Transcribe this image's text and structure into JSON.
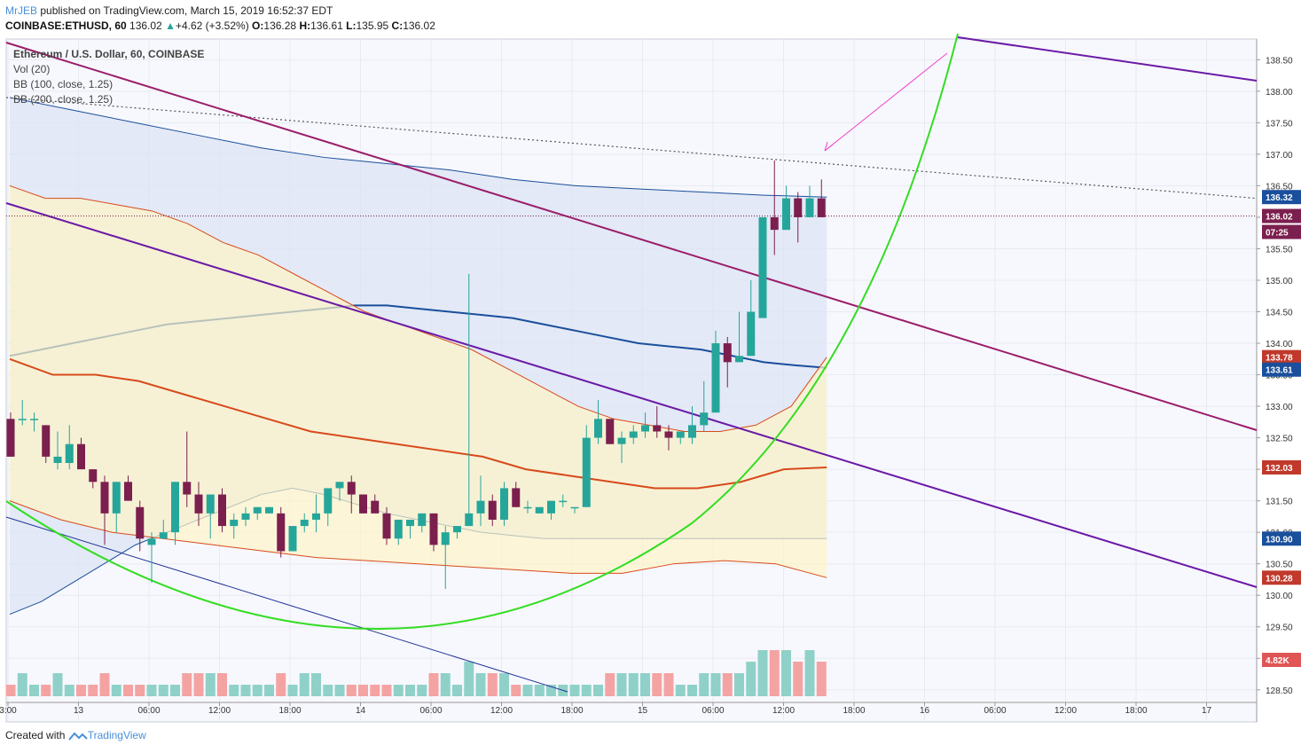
{
  "header": {
    "author": "MrJEB",
    "published_text": "published on TradingView.com, March 15, 2019 16:52:37 EDT",
    "symbol": "COINBASE:ETHUSD, 60",
    "last": "136.02",
    "change_arrow": "▲",
    "change": "+4.62 (+3.52%)",
    "o_label": "O:",
    "o_value": "136.28",
    "h_label": "H:",
    "h_value": "136.61",
    "l_label": "L:",
    "l_value": "135.95",
    "c_label": "C:",
    "c_value": "136.02"
  },
  "legend": {
    "title": "Ethereum / U.S. Dollar, 60, COINBASE",
    "vol": "Vol (20)",
    "bb100": "BB (100, close, 1.25)",
    "bb200": "BB (200, close, 1.25)"
  },
  "footer": {
    "created_with": "Created with",
    "brand": "TradingView",
    "logo_icon": "tradingview-logo-icon"
  },
  "colors": {
    "up": "#26a69a",
    "down": "#7b1f4e",
    "vol_up": "#8fd1c9",
    "vol_down": "#f4a3a3",
    "bb100_fill": "#fdf3c8",
    "bb200_fill": "#dce4f3",
    "bb_red": "#d84a1b",
    "bb_blue": "#1a4f9c",
    "curve": "#33dd22",
    "magenta_line": "#9b1d6b",
    "purple_line": "#6b1aa6",
    "navy_line": "#223399",
    "pink_arrow": "#ee44cc",
    "dotted": "#555555"
  },
  "chart_data": {
    "type": "candlestick",
    "symbol": "COINBASE:ETHUSD",
    "interval": "60",
    "y_axis": {
      "range": [
        128.3,
        138.8
      ],
      "ticks": [
        "138.50",
        "138.00",
        "137.50",
        "137.00",
        "136.50",
        "136.00",
        "135.50",
        "135.00",
        "134.50",
        "134.00",
        "133.50",
        "133.00",
        "132.50",
        "132.00",
        "131.50",
        "131.00",
        "130.50",
        "130.00",
        "129.50",
        "129.00",
        "128.50"
      ]
    },
    "x_axis": {
      "labels": [
        "3:00",
        "13",
        "06:00",
        "12:00",
        "18:00",
        "14",
        "06:00",
        "12:00",
        "18:00",
        "15",
        "06:00",
        "12:00",
        "18:00",
        "16",
        "06:00",
        "12:00",
        "18:00",
        "17"
      ],
      "label_index": [
        0,
        3,
        6,
        9,
        12,
        15,
        18,
        21,
        24,
        27,
        30,
        33,
        36,
        39,
        42,
        45,
        48,
        51
      ]
    },
    "price_tags": [
      {
        "value": "136.32",
        "color": "#1a4f9c"
      },
      {
        "value": "136.02",
        "color": "#7b1f4e"
      },
      {
        "value": "07:25",
        "color": "#7b1f4e"
      },
      {
        "value": "133.78",
        "color": "#c0392b"
      },
      {
        "value": "133.61",
        "color": "#1a4f9c"
      },
      {
        "value": "132.03",
        "color": "#c0392b"
      },
      {
        "value": "130.90",
        "color": "#1a4f9c"
      },
      {
        "value": "130.28",
        "color": "#c0392b"
      },
      {
        "value": "4.82K",
        "color": "#e05555"
      }
    ],
    "candles": [
      [
        132.8,
        132.9,
        132.2,
        132.2
      ],
      [
        132.8,
        133.1,
        132.7,
        132.8
      ],
      [
        132.8,
        132.9,
        132.6,
        132.8
      ],
      [
        132.7,
        132.7,
        132.1,
        132.2
      ],
      [
        132.1,
        132.6,
        132.0,
        132.2
      ],
      [
        132.1,
        132.7,
        132.0,
        132.4
      ],
      [
        132.4,
        132.5,
        132.0,
        132.0
      ],
      [
        132.0,
        132.0,
        131.7,
        131.8
      ],
      [
        131.8,
        131.9,
        130.8,
        131.3
      ],
      [
        131.3,
        131.8,
        131.0,
        131.8
      ],
      [
        131.8,
        131.9,
        131.5,
        131.5
      ],
      [
        131.4,
        131.5,
        130.7,
        130.9
      ],
      [
        130.8,
        131.0,
        130.2,
        130.9
      ],
      [
        130.9,
        131.2,
        130.9,
        131.0
      ],
      [
        131.0,
        131.8,
        130.8,
        131.8
      ],
      [
        131.8,
        132.6,
        131.4,
        131.6
      ],
      [
        131.6,
        131.8,
        131.1,
        131.3
      ],
      [
        131.3,
        131.6,
        130.9,
        131.6
      ],
      [
        131.6,
        131.7,
        131.0,
        131.1
      ],
      [
        131.1,
        131.3,
        130.9,
        131.2
      ],
      [
        131.2,
        131.4,
        131.1,
        131.3
      ],
      [
        131.3,
        131.4,
        131.2,
        131.4
      ],
      [
        131.3,
        131.4,
        131.3,
        131.4
      ],
      [
        131.3,
        131.4,
        130.6,
        130.7
      ],
      [
        130.7,
        131.0,
        130.7,
        131.1
      ],
      [
        131.1,
        131.3,
        131.0,
        131.2
      ],
      [
        131.2,
        131.6,
        131.0,
        131.3
      ],
      [
        131.3,
        131.6,
        131.1,
        131.7
      ],
      [
        131.7,
        131.8,
        131.5,
        131.8
      ],
      [
        131.8,
        131.9,
        131.3,
        131.6
      ],
      [
        131.6,
        131.6,
        131.3,
        131.3
      ],
      [
        131.5,
        131.6,
        131.3,
        131.3
      ],
      [
        131.3,
        131.4,
        130.8,
        130.9
      ],
      [
        130.9,
        131.2,
        130.8,
        131.2
      ],
      [
        131.1,
        131.2,
        130.9,
        131.2
      ],
      [
        131.1,
        131.3,
        131.0,
        131.3
      ],
      [
        131.3,
        131.3,
        130.7,
        130.8
      ],
      [
        130.8,
        131.1,
        130.1,
        131.0
      ],
      [
        131.0,
        131.1,
        130.9,
        131.1
      ],
      [
        131.1,
        135.1,
        131.1,
        131.3
      ],
      [
        131.3,
        131.9,
        131.1,
        131.5
      ],
      [
        131.5,
        131.6,
        131.1,
        131.2
      ],
      [
        131.2,
        131.8,
        131.1,
        131.7
      ],
      [
        131.7,
        131.8,
        131.4,
        131.4
      ],
      [
        131.4,
        131.5,
        131.3,
        131.4
      ],
      [
        131.3,
        131.4,
        131.3,
        131.4
      ],
      [
        131.3,
        131.5,
        131.2,
        131.5
      ],
      [
        131.5,
        131.6,
        131.4,
        131.5
      ],
      [
        131.4,
        131.4,
        131.3,
        131.4
      ],
      [
        131.4,
        132.7,
        131.4,
        132.5
      ],
      [
        132.5,
        133.1,
        132.4,
        132.8
      ],
      [
        132.8,
        132.8,
        132.4,
        132.4
      ],
      [
        132.4,
        132.6,
        132.1,
        132.5
      ],
      [
        132.5,
        132.7,
        132.4,
        132.6
      ],
      [
        132.6,
        132.9,
        132.5,
        132.7
      ],
      [
        132.7,
        133.0,
        132.5,
        132.6
      ],
      [
        132.6,
        132.7,
        132.3,
        132.5
      ],
      [
        132.5,
        132.6,
        132.4,
        132.6
      ],
      [
        132.5,
        133.0,
        132.4,
        132.7
      ],
      [
        132.7,
        133.4,
        132.6,
        132.9
      ],
      [
        132.9,
        134.2,
        132.9,
        134.0
      ],
      [
        134.0,
        134.1,
        133.3,
        133.7
      ],
      [
        133.7,
        134.5,
        133.7,
        133.8
      ],
      [
        133.8,
        135.0,
        133.8,
        134.5
      ],
      [
        134.4,
        136.0,
        134.4,
        136.0
      ],
      [
        136.0,
        136.9,
        135.4,
        135.8
      ],
      [
        135.8,
        136.5,
        135.8,
        136.3
      ],
      [
        136.3,
        136.4,
        135.6,
        136.0
      ],
      [
        136.0,
        136.5,
        136.0,
        136.3
      ],
      [
        136.3,
        136.6,
        136.0,
        136.0
      ]
    ],
    "volume_max": 10,
    "volume": [
      1,
      2,
      1,
      1,
      2,
      1,
      1,
      1,
      2,
      1,
      1,
      1,
      1,
      1,
      1,
      2,
      2,
      2,
      2,
      1,
      1,
      1,
      1,
      2,
      1,
      2,
      2,
      1,
      1,
      1,
      1,
      1,
      1,
      1,
      1,
      1,
      2,
      2,
      1,
      3,
      2,
      2,
      2,
      1,
      1,
      1,
      1,
      1,
      1,
      1,
      1,
      2,
      2,
      2,
      2,
      2,
      2,
      1,
      1,
      2,
      2,
      2,
      2,
      3,
      4,
      4,
      4,
      3,
      4,
      3
    ],
    "bb200": {
      "upper": [
        133.8,
        133.9,
        134.0,
        134.1,
        134.2,
        134.3,
        134.35,
        134.4,
        134.45,
        134.5,
        134.55,
        134.6,
        134.6,
        134.55,
        134.5,
        134.45,
        134.4,
        134.3,
        134.2,
        134.1,
        134.0,
        133.95,
        133.9,
        133.8,
        133.7,
        133.65,
        133.61
      ],
      "lower": [
        129.7,
        129.9,
        130.2,
        130.5,
        130.8,
        131.0,
        131.2,
        131.4,
        131.6,
        131.7,
        131.6,
        131.45,
        131.3,
        131.2,
        131.1,
        131.0,
        130.95,
        130.9,
        130.9,
        130.9,
        130.9,
        130.9,
        130.9,
        130.9,
        130.9,
        130.9,
        130.9
      ],
      "basis_top": [
        137.9,
        137.7,
        137.5,
        137.3,
        137.1,
        136.95,
        136.85,
        136.75,
        136.6,
        136.5,
        136.45,
        136.4,
        136.35,
        136.32
      ]
    }
  }
}
